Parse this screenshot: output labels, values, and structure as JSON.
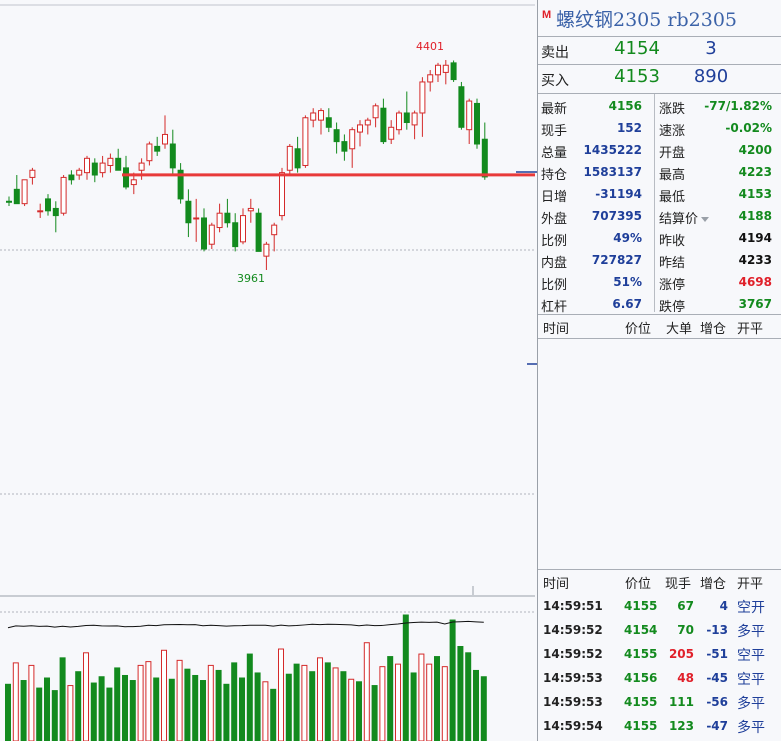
{
  "header": {
    "badge": "M",
    "title": "螺纹钢2305 rb2305"
  },
  "orderbook": {
    "sell": {
      "label": "卖出",
      "price": "4154",
      "volume": "3"
    },
    "buy": {
      "label": "买入",
      "price": "4153",
      "volume": "890"
    }
  },
  "quotes": [
    {
      "l1": "最新",
      "v1": "4156",
      "c1": "#138a1e",
      "l2": "涨跌",
      "v2": "-77/1.82%",
      "c2": "#138a1e"
    },
    {
      "l1": "现手",
      "v1": "152",
      "c1": "#1f3f9a",
      "l2": "速涨",
      "v2": "-0.02%",
      "c2": "#138a1e"
    },
    {
      "l1": "总量",
      "v1": "1435222",
      "c1": "#1f3f9a",
      "l2": "开盘",
      "v2": "4200",
      "c2": "#138a1e"
    },
    {
      "l1": "持仓",
      "v1": "1583137",
      "c1": "#1f3f9a",
      "l2": "最高",
      "v2": "4223",
      "c2": "#138a1e"
    },
    {
      "l1": "日增",
      "v1": "-31194",
      "c1": "#1f3f9a",
      "l2": "最低",
      "v2": "4153",
      "c2": "#138a1e"
    },
    {
      "l1": "外盘",
      "v1": "707395",
      "c1": "#1f3f9a",
      "l2": "结算价",
      "v2": "4188",
      "c2": "#138a1e"
    },
    {
      "l1": "比例",
      "v1": "49%",
      "c1": "#1f3f9a",
      "l2": "昨收",
      "v2": "4194",
      "c2": "#111111"
    },
    {
      "l1": "内盘",
      "v1": "727827",
      "c1": "#1f3f9a",
      "l2": "昨结",
      "v2": "4233",
      "c2": "#111111"
    },
    {
      "l1": "比例",
      "v1": "51%",
      "c1": "#1f3f9a",
      "l2": "涨停",
      "v2": "4698",
      "c2": "#e0202a"
    },
    {
      "l1": "杠杆",
      "v1": "6.67",
      "c1": "#1f3f9a",
      "l2": "跌停",
      "v2": "3767",
      "c2": "#138a1e"
    }
  ],
  "big_orders": {
    "headers": [
      "时间",
      "价位",
      "大单",
      "增仓",
      "开平"
    ]
  },
  "ticks": {
    "headers": [
      "时间",
      "价位",
      "现手",
      "增仓",
      "开平"
    ],
    "rows": [
      {
        "time": "14:59:51",
        "price": "4155",
        "vol": "67",
        "vol_color": "#138a1e",
        "chg": "4",
        "type": "空开"
      },
      {
        "time": "14:59:52",
        "price": "4154",
        "vol": "70",
        "vol_color": "#138a1e",
        "chg": "-13",
        "type": "多平"
      },
      {
        "time": "14:59:52",
        "price": "4155",
        "vol": "205",
        "vol_color": "#e0202a",
        "chg": "-51",
        "type": "空平"
      },
      {
        "time": "14:59:53",
        "price": "4156",
        "vol": "48",
        "vol_color": "#e0202a",
        "chg": "-45",
        "type": "空平"
      },
      {
        "time": "14:59:53",
        "price": "4155",
        "vol": "111",
        "vol_color": "#138a1e",
        "chg": "-56",
        "type": "多平"
      },
      {
        "time": "14:59:54",
        "price": "4155",
        "vol": "123",
        "vol_color": "#138a1e",
        "chg": "-47",
        "type": "多平"
      }
    ]
  },
  "chart_data": {
    "type": "candlestick",
    "annotations": {
      "high_label": "4401",
      "low_label": "3961"
    },
    "levels": [
      4156
    ],
    "price_range_estimate": [
      3950,
      4410
    ],
    "candles": [
      {
        "o": 4105,
        "h": 4115,
        "l": 4095,
        "c": 4103
      },
      {
        "o": 4130,
        "h": 4160,
        "l": 4100,
        "c": 4100
      },
      {
        "o": 4100,
        "h": 4150,
        "l": 4095,
        "c": 4150
      },
      {
        "o": 4155,
        "h": 4175,
        "l": 4140,
        "c": 4170
      },
      {
        "o": 4085,
        "h": 4100,
        "l": 4070,
        "c": 4085
      },
      {
        "o": 4110,
        "h": 4120,
        "l": 4075,
        "c": 4085
      },
      {
        "o": 4090,
        "h": 4105,
        "l": 4040,
        "c": 4075
      },
      {
        "o": 4080,
        "h": 4160,
        "l": 4075,
        "c": 4155
      },
      {
        "o": 4160,
        "h": 4170,
        "l": 4140,
        "c": 4150
      },
      {
        "o": 4160,
        "h": 4175,
        "l": 4150,
        "c": 4170
      },
      {
        "o": 4165,
        "h": 4200,
        "l": 4150,
        "c": 4195
      },
      {
        "o": 4185,
        "h": 4195,
        "l": 4145,
        "c": 4160
      },
      {
        "o": 4165,
        "h": 4200,
        "l": 4155,
        "c": 4185
      },
      {
        "o": 4180,
        "h": 4205,
        "l": 4165,
        "c": 4195
      },
      {
        "o": 4195,
        "h": 4215,
        "l": 4170,
        "c": 4170
      },
      {
        "o": 4175,
        "h": 4200,
        "l": 4130,
        "c": 4135
      },
      {
        "o": 4140,
        "h": 4165,
        "l": 4120,
        "c": 4150
      },
      {
        "o": 4170,
        "h": 4195,
        "l": 4150,
        "c": 4185
      },
      {
        "o": 4190,
        "h": 4230,
        "l": 4180,
        "c": 4225
      },
      {
        "o": 4220,
        "h": 4240,
        "l": 4200,
        "c": 4210
      },
      {
        "o": 4225,
        "h": 4285,
        "l": 4215,
        "c": 4245
      },
      {
        "o": 4225,
        "h": 4255,
        "l": 4160,
        "c": 4175
      },
      {
        "o": 4170,
        "h": 4185,
        "l": 4100,
        "c": 4110
      },
      {
        "o": 4105,
        "h": 4130,
        "l": 4030,
        "c": 4060
      },
      {
        "o": 4070,
        "h": 4110,
        "l": 4020,
        "c": 4070
      },
      {
        "o": 4070,
        "h": 4090,
        "l": 4000,
        "c": 4005
      },
      {
        "o": 4015,
        "h": 4060,
        "l": 4005,
        "c": 4055
      },
      {
        "o": 4050,
        "h": 4100,
        "l": 4040,
        "c": 4080
      },
      {
        "o": 4080,
        "h": 4110,
        "l": 4050,
        "c": 4060
      },
      {
        "o": 4060,
        "h": 4080,
        "l": 4000,
        "c": 4010
      },
      {
        "o": 4020,
        "h": 4090,
        "l": 4015,
        "c": 4075
      },
      {
        "o": 4085,
        "h": 4110,
        "l": 4060,
        "c": 4090
      },
      {
        "o": 4080,
        "h": 4090,
        "l": 4000,
        "c": 4000
      },
      {
        "o": 3990,
        "h": 4020,
        "l": 3961,
        "c": 4015
      },
      {
        "o": 4035,
        "h": 4060,
        "l": 4000,
        "c": 4055
      },
      {
        "o": 4075,
        "h": 4175,
        "l": 4065,
        "c": 4165
      },
      {
        "o": 4170,
        "h": 4225,
        "l": 4160,
        "c": 4220
      },
      {
        "o": 4215,
        "h": 4240,
        "l": 4165,
        "c": 4175
      },
      {
        "o": 4180,
        "h": 4285,
        "l": 4175,
        "c": 4280
      },
      {
        "o": 4275,
        "h": 4300,
        "l": 4260,
        "c": 4290
      },
      {
        "o": 4275,
        "h": 4300,
        "l": 4245,
        "c": 4295
      },
      {
        "o": 4280,
        "h": 4300,
        "l": 4250,
        "c": 4260
      },
      {
        "o": 4255,
        "h": 4270,
        "l": 4205,
        "c": 4230
      },
      {
        "o": 4230,
        "h": 4245,
        "l": 4190,
        "c": 4210
      },
      {
        "o": 4215,
        "h": 4260,
        "l": 4175,
        "c": 4255
      },
      {
        "o": 4250,
        "h": 4275,
        "l": 4220,
        "c": 4265
      },
      {
        "o": 4265,
        "h": 4280,
        "l": 4245,
        "c": 4275
      },
      {
        "o": 4280,
        "h": 4310,
        "l": 4260,
        "c": 4305
      },
      {
        "o": 4300,
        "h": 4320,
        "l": 4225,
        "c": 4230
      },
      {
        "o": 4235,
        "h": 4275,
        "l": 4225,
        "c": 4260
      },
      {
        "o": 4255,
        "h": 4295,
        "l": 4245,
        "c": 4290
      },
      {
        "o": 4290,
        "h": 4335,
        "l": 4255,
        "c": 4270
      },
      {
        "o": 4265,
        "h": 4295,
        "l": 4235,
        "c": 4290
      },
      {
        "o": 4290,
        "h": 4365,
        "l": 4240,
        "c": 4355
      },
      {
        "o": 4355,
        "h": 4380,
        "l": 4335,
        "c": 4370
      },
      {
        "o": 4370,
        "h": 4395,
        "l": 4355,
        "c": 4390
      },
      {
        "o": 4375,
        "h": 4401,
        "l": 4350,
        "c": 4390
      },
      {
        "o": 4395,
        "h": 4400,
        "l": 4355,
        "c": 4360
      },
      {
        "o": 4345,
        "h": 4355,
        "l": 4255,
        "c": 4260
      },
      {
        "o": 4255,
        "h": 4320,
        "l": 4225,
        "c": 4315
      },
      {
        "o": 4310,
        "h": 4320,
        "l": 4215,
        "c": 4225
      },
      {
        "o": 4235,
        "h": 4270,
        "l": 4150,
        "c": 4156
      }
    ],
    "volume": [
      0.45,
      0.62,
      0.48,
      0.6,
      0.42,
      0.5,
      0.4,
      0.66,
      0.44,
      0.55,
      0.7,
      0.46,
      0.51,
      0.42,
      0.58,
      0.52,
      0.48,
      0.6,
      0.63,
      0.5,
      0.72,
      0.49,
      0.64,
      0.57,
      0.52,
      0.48,
      0.6,
      0.56,
      0.45,
      0.62,
      0.5,
      0.69,
      0.54,
      0.47,
      0.41,
      0.73,
      0.53,
      0.61,
      0.6,
      0.55,
      0.66,
      0.62,
      0.58,
      0.55,
      0.49,
      0.47,
      0.78,
      0.44,
      0.59,
      0.67,
      0.61,
      1.0,
      0.54,
      0.69,
      0.61,
      0.67,
      0.59,
      0.96,
      0.75,
      0.7,
      0.56,
      0.51
    ],
    "volume_red_indices": [
      1,
      3,
      8,
      10,
      17,
      18,
      20,
      22,
      26,
      33,
      35,
      38,
      40,
      42,
      44,
      46,
      48,
      50,
      53,
      54,
      56
    ]
  }
}
